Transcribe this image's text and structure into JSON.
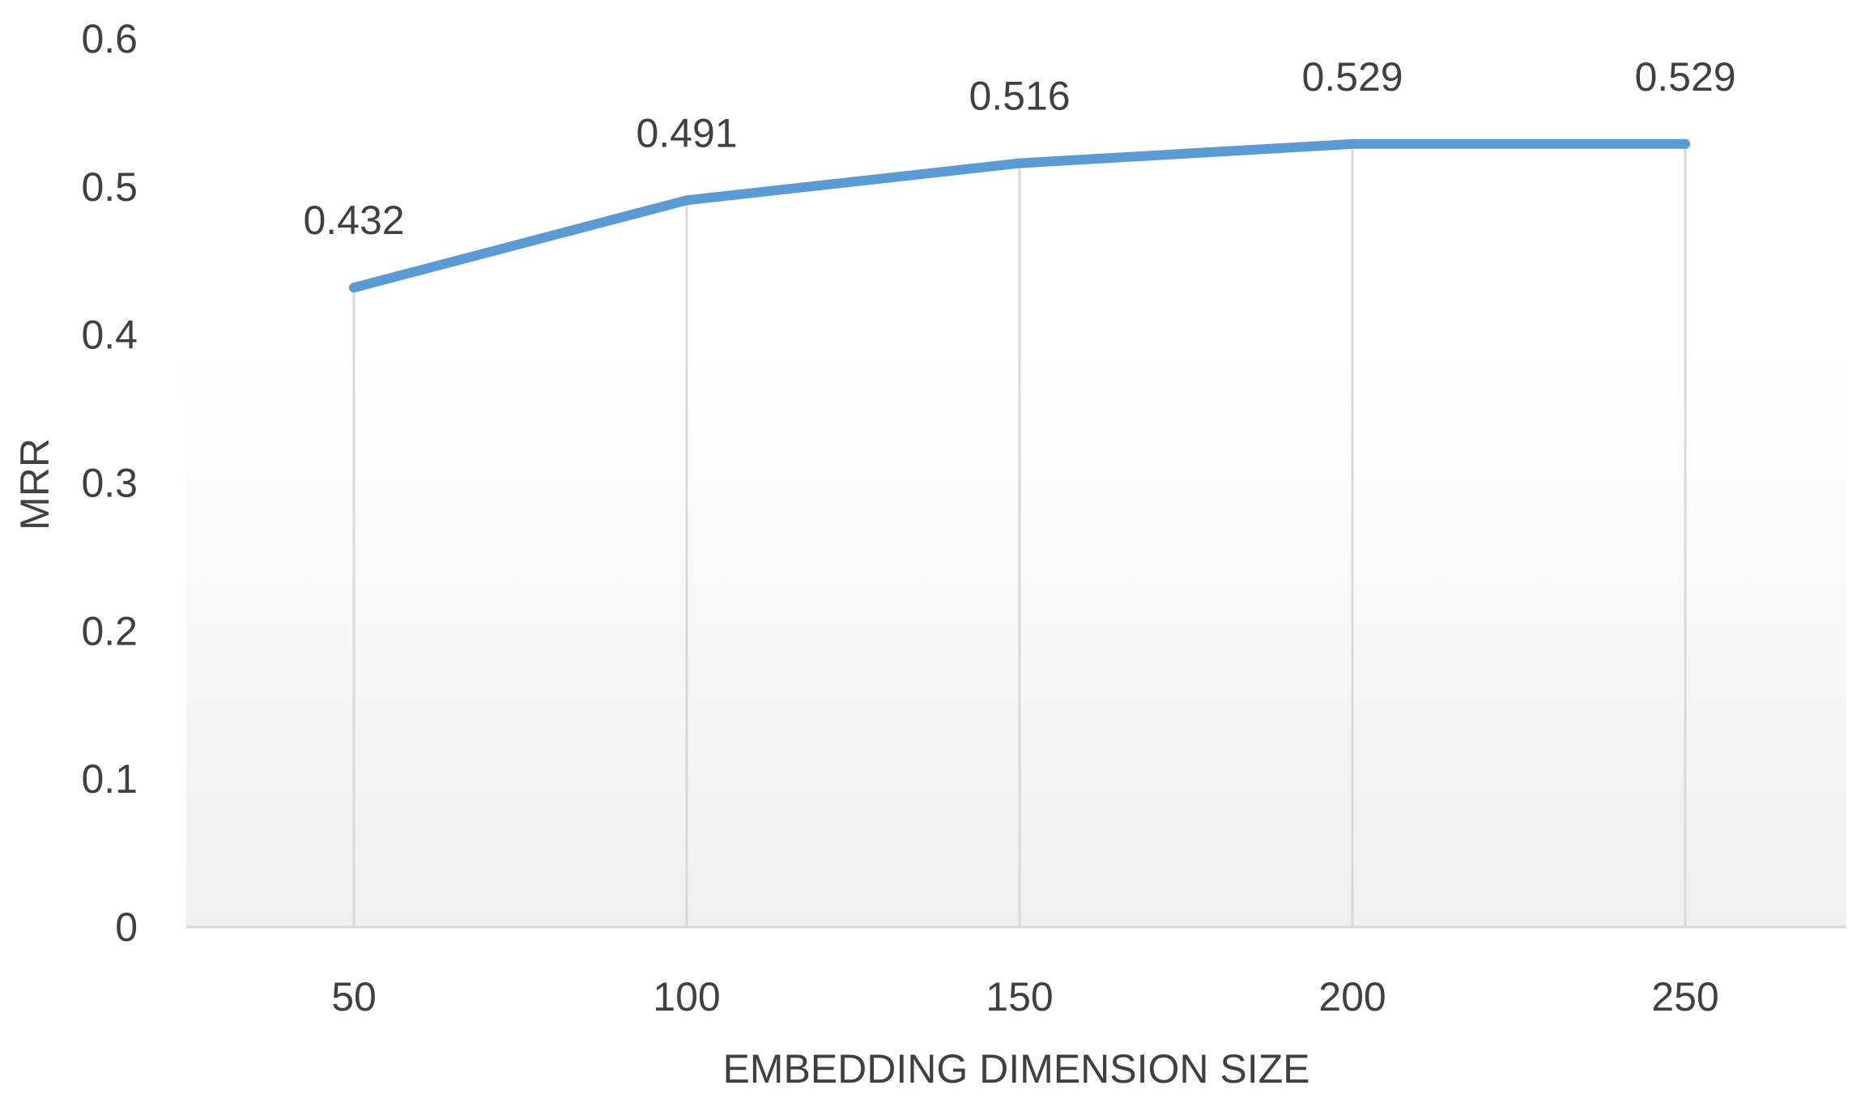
{
  "chart_data": {
    "type": "line",
    "title": "",
    "xlabel": "EMBEDDING DIMENSION SIZE",
    "ylabel": "MRR",
    "categories": [
      "50",
      "100",
      "150",
      "200",
      "250"
    ],
    "series": [
      {
        "values": [
          0.432,
          0.491,
          0.516,
          0.529,
          0.529
        ],
        "data_labels": [
          "0.432",
          "0.491",
          "0.516",
          "0.529",
          "0.529"
        ],
        "color": "#5b9bd5"
      }
    ],
    "ylim": [
      0,
      0.6
    ],
    "yticks": [
      0,
      0.1,
      0.2,
      0.3,
      0.4,
      0.5,
      0.6
    ],
    "ytick_labels": [
      "0",
      "0.1",
      "0.2",
      "0.3",
      "0.4",
      "0.5",
      "0.6"
    ],
    "grid": "vertical",
    "legend": "none",
    "plot_background": "gradient white to light gray"
  }
}
